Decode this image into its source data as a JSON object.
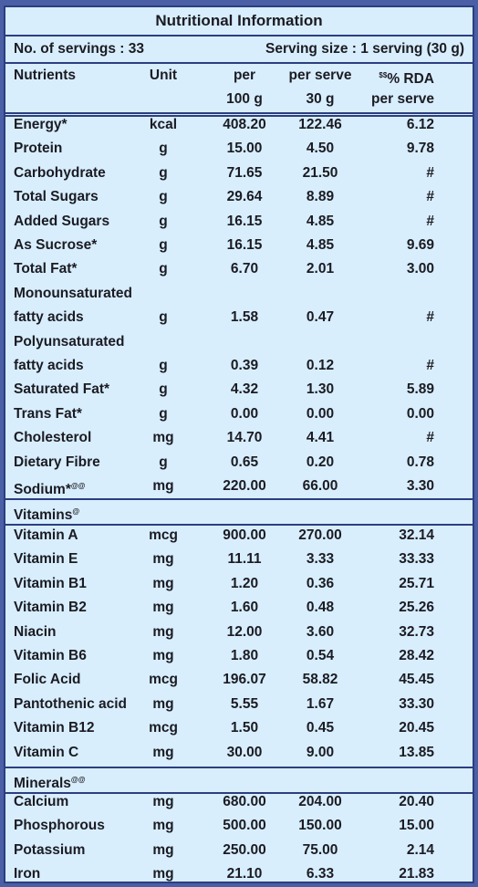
{
  "title": "Nutritional Information",
  "servings": "No. of servings : 33",
  "serving_size": "Serving size : 1 serving (30 g)",
  "headers": {
    "nutrients": "Nutrients",
    "unit": "Unit",
    "per100_line1": "per",
    "per100_line2": "100 g",
    "perserve_line1": "per serve",
    "perserve_line2": "30 g",
    "rda_sup": "$$",
    "rda_line1": "% RDA",
    "rda_line2": "per serve"
  },
  "nutrients": [
    {
      "name": "Energy*",
      "unit": "kcal",
      "per100": "408.20",
      "perserve": "122.46",
      "rda": "6.12"
    },
    {
      "name": "Protein",
      "unit": "g",
      "per100": "15.00",
      "perserve": "4.50",
      "rda": "9.78"
    },
    {
      "name": "Carbohydrate",
      "unit": "g",
      "per100": "71.65",
      "perserve": "21.50",
      "rda": "#"
    },
    {
      "name": "Total Sugars",
      "unit": "g",
      "per100": "29.64",
      "perserve": "8.89",
      "rda": "#"
    },
    {
      "name": "Added Sugars",
      "unit": "g",
      "per100": "16.15",
      "perserve": "4.85",
      "rda": "#"
    },
    {
      "name": "As Sucrose*",
      "unit": "g",
      "per100": "16.15",
      "perserve": "4.85",
      "rda": "9.69"
    },
    {
      "name": "Total Fat*",
      "unit": "g",
      "per100": "6.70",
      "perserve": "2.01",
      "rda": "3.00"
    },
    {
      "name": "Monounsaturated",
      "unit": "",
      "per100": "",
      "perserve": "",
      "rda": ""
    },
    {
      "name": "fatty acids",
      "unit": "g",
      "per100": "1.58",
      "perserve": "0.47",
      "rda": "#"
    },
    {
      "name": "Polyunsaturated",
      "unit": "",
      "per100": "",
      "perserve": "",
      "rda": ""
    },
    {
      "name": "fatty acids",
      "unit": "g",
      "per100": "0.39",
      "perserve": "0.12",
      "rda": "#"
    },
    {
      "name": "Saturated Fat*",
      "unit": "g",
      "per100": "4.32",
      "perserve": "1.30",
      "rda": "5.89"
    },
    {
      "name": "Trans Fat*",
      "unit": "g",
      "per100": "0.00",
      "perserve": "0.00",
      "rda": "0.00"
    },
    {
      "name": "Cholesterol",
      "unit": "mg",
      "per100": "14.70",
      "perserve": "4.41",
      "rda": "#"
    },
    {
      "name": "Dietary Fibre",
      "unit": "g",
      "per100": "0.65",
      "perserve": "0.20",
      "rda": "0.78"
    },
    {
      "name": "Sodium*",
      "sup": "@@",
      "unit": "mg",
      "per100": "220.00",
      "perserve": "66.00",
      "rda": "3.30"
    }
  ],
  "vitamins_label": "Vitamins",
  "vitamins_sup": "@",
  "vitamins": [
    {
      "name": "Vitamin A",
      "unit": "mcg",
      "per100": "900.00",
      "perserve": "270.00",
      "rda": "32.14"
    },
    {
      "name": "Vitamin E",
      "unit": "mg",
      "per100": "11.11",
      "perserve": "3.33",
      "rda": "33.33"
    },
    {
      "name": "Vitamin B1",
      "unit": "mg",
      "per100": "1.20",
      "perserve": "0.36",
      "rda": "25.71"
    },
    {
      "name": "Vitamin B2",
      "unit": "mg",
      "per100": "1.60",
      "perserve": "0.48",
      "rda": "25.26"
    },
    {
      "name": "Niacin",
      "unit": "mg",
      "per100": "12.00",
      "perserve": "3.60",
      "rda": "32.73"
    },
    {
      "name": "Vitamin B6",
      "unit": "mg",
      "per100": "1.80",
      "perserve": "0.54",
      "rda": "28.42"
    },
    {
      "name": "Folic Acid",
      "unit": "mcg",
      "per100": "196.07",
      "perserve": "58.82",
      "rda": "45.45"
    },
    {
      "name": "Pantothenic acid",
      "unit": "mg",
      "per100": "5.55",
      "perserve": "1.67",
      "rda": "33.30"
    },
    {
      "name": "Vitamin B12",
      "unit": "mcg",
      "per100": "1.50",
      "perserve": "0.45",
      "rda": "20.45"
    },
    {
      "name": "Vitamin C",
      "unit": "mg",
      "per100": "30.00",
      "perserve": "9.00",
      "rda": "13.85"
    }
  ],
  "minerals_label": "Minerals",
  "minerals_sup": "@@",
  "minerals": [
    {
      "name": "Calcium",
      "unit": "mg",
      "per100": "680.00",
      "perserve": "204.00",
      "rda": "20.40"
    },
    {
      "name": "Phosphorous",
      "unit": "mg",
      "per100": "500.00",
      "perserve": "150.00",
      "rda": "15.00"
    },
    {
      "name": "Potassium",
      "unit": "mg",
      "per100": "250.00",
      "perserve": "75.00",
      "rda": "2.14"
    },
    {
      "name": "Iron",
      "unit": "mg",
      "per100": "21.10",
      "perserve": "6.33",
      "rda": "21.83"
    }
  ],
  "colors": {
    "panel": "#d8eefc",
    "border": "#2c3e80",
    "background": "#4a5fa6",
    "text": "#1b1b24"
  }
}
